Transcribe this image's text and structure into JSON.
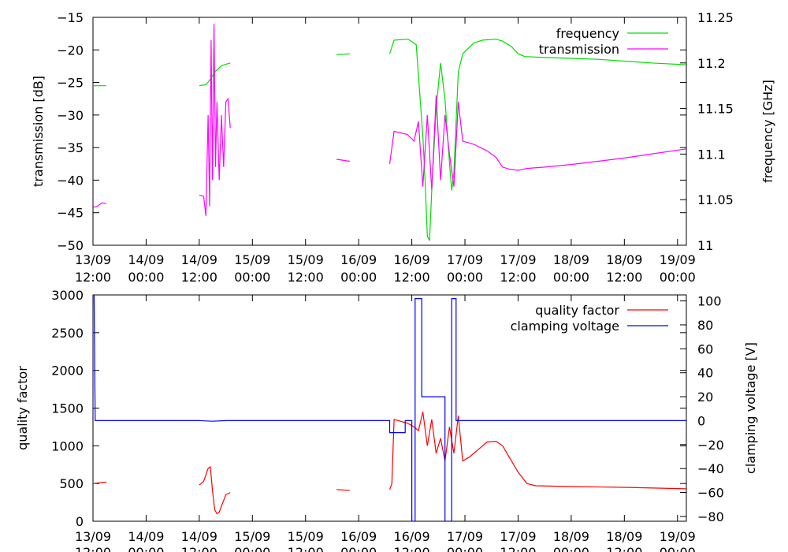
{
  "chart_data": [
    {
      "type": "line",
      "title": "",
      "ylabel": "transmission [dB]",
      "y2label": "frequency [GHz]",
      "xlim": [
        "2013-09-13T12:00",
        "2013-09-19T02:00"
      ],
      "ylim": [
        -50,
        -15
      ],
      "y2lim": [
        11.0,
        11.25
      ],
      "x_ticks": [
        {
          "at": "2013-09-13T12:00",
          "date": "13/09",
          "time": "12:00"
        },
        {
          "at": "2013-09-14T00:00",
          "date": "14/09",
          "time": "00:00"
        },
        {
          "at": "2013-09-14T12:00",
          "date": "14/09",
          "time": "12:00"
        },
        {
          "at": "2013-09-15T00:00",
          "date": "15/09",
          "time": "00:00"
        },
        {
          "at": "2013-09-15T12:00",
          "date": "15/09",
          "time": "12:00"
        },
        {
          "at": "2013-09-16T00:00",
          "date": "16/09",
          "time": "00:00"
        },
        {
          "at": "2013-09-16T12:00",
          "date": "16/09",
          "time": "12:00"
        },
        {
          "at": "2013-09-17T00:00",
          "date": "17/09",
          "time": "00:00"
        },
        {
          "at": "2013-09-17T12:00",
          "date": "17/09",
          "time": "12:00"
        },
        {
          "at": "2013-09-18T00:00",
          "date": "18/09",
          "time": "00:00"
        },
        {
          "at": "2013-09-18T12:00",
          "date": "18/09",
          "time": "12:00"
        },
        {
          "at": "2013-09-19T00:00",
          "date": "19/09",
          "time": "00:00"
        }
      ],
      "y_ticks": [
        -15,
        -20,
        -25,
        -30,
        -35,
        -40,
        -45,
        -50
      ],
      "y2_ticks": [
        11.25,
        11.2,
        11.15,
        11.1,
        11.05,
        11
      ],
      "legend": "top-right",
      "series": [
        {
          "name": "frequency",
          "axis": "y2",
          "color": "#00dd00",
          "segments": [
            [
              [
                "2013-09-13T12:00",
                11.175
              ],
              [
                "2013-09-13T15:00",
                11.175
              ]
            ],
            [
              [
                "2013-09-14T12:00",
                11.175
              ],
              [
                "2013-09-14T13:30",
                11.176
              ],
              [
                "2013-09-14T14:30",
                11.182
              ],
              [
                "2013-09-14T15:30",
                11.19
              ],
              [
                "2013-09-14T17:00",
                11.197
              ],
              [
                "2013-09-14T19:00",
                11.2
              ]
            ],
            [
              [
                "2013-09-15T19:00",
                11.209
              ],
              [
                "2013-09-15T22:00",
                11.21
              ]
            ],
            [
              [
                "2013-09-16T07:00",
                11.21
              ],
              [
                "2013-09-16T08:00",
                11.225
              ],
              [
                "2013-09-16T11:00",
                11.226
              ],
              [
                "2013-09-16T11:30",
                11.225
              ],
              [
                "2013-09-16T13:00",
                11.22
              ],
              [
                "2013-09-16T14:30",
                11.12
              ],
              [
                "2013-09-16T15:00",
                11.07
              ],
              [
                "2013-09-16T15:30",
                11.01
              ],
              [
                "2013-09-16T16:00",
                11.005
              ],
              [
                "2013-09-16T16:30",
                11.06
              ],
              [
                "2013-09-16T17:30",
                11.15
              ],
              [
                "2013-09-16T18:30",
                11.2
              ],
              [
                "2013-09-16T19:30",
                11.16
              ],
              [
                "2013-09-16T20:30",
                11.09
              ],
              [
                "2013-09-16T21:00",
                11.06
              ],
              [
                "2013-09-16T21:30",
                11.08
              ],
              [
                "2013-09-16T22:30",
                11.19
              ],
              [
                "2013-09-16T23:30",
                11.21
              ],
              [
                "2013-09-17T02:00",
                11.222
              ],
              [
                "2013-09-17T04:00",
                11.225
              ],
              [
                "2013-09-17T07:00",
                11.226
              ],
              [
                "2013-09-17T08:30",
                11.224
              ],
              [
                "2013-09-17T10:30",
                11.218
              ],
              [
                "2013-09-17T12:00",
                11.21
              ],
              [
                "2013-09-17T13:30",
                11.207
              ],
              [
                "2013-09-17T18:00",
                11.206
              ],
              [
                "2013-09-18T00:00",
                11.205
              ],
              [
                "2013-09-18T06:00",
                11.204
              ],
              [
                "2013-09-18T12:00",
                11.202
              ],
              [
                "2013-09-18T18:00",
                11.2
              ],
              [
                "2013-09-19T02:00",
                11.198
              ]
            ]
          ]
        },
        {
          "name": "transmission",
          "axis": "y",
          "color": "#ff00ff",
          "segments": [
            [
              [
                "2013-09-13T12:00",
                -44.2
              ],
              [
                "2013-09-13T13:00",
                -44.0
              ],
              [
                "2013-09-13T14:00",
                -43.5
              ],
              [
                "2013-09-13T15:00",
                -43.6
              ]
            ],
            [
              [
                "2013-09-14T12:00",
                -42.3
              ],
              [
                "2013-09-14T13:00",
                -42.5
              ],
              [
                "2013-09-14T13:30",
                -45.5
              ],
              [
                "2013-09-14T14:00",
                -30
              ],
              [
                "2013-09-14T14:20",
                -44
              ],
              [
                "2013-09-14T14:40",
                -18.5
              ],
              [
                "2013-09-14T15:00",
                -40
              ],
              [
                "2013-09-14T15:20",
                -16
              ],
              [
                "2013-09-14T15:40",
                -38
              ],
              [
                "2013-09-14T16:00",
                -28
              ],
              [
                "2013-09-14T16:30",
                -40
              ],
              [
                "2013-09-14T17:00",
                -30
              ],
              [
                "2013-09-14T17:30",
                -38
              ],
              [
                "2013-09-14T18:00",
                -28
              ],
              [
                "2013-09-14T18:30",
                -27.5
              ],
              [
                "2013-09-14T19:00",
                -32
              ]
            ],
            [
              [
                "2013-09-15T19:00",
                -36.8
              ],
              [
                "2013-09-15T22:00",
                -37.1
              ]
            ],
            [
              [
                "2013-09-16T07:00",
                -37.5
              ],
              [
                "2013-09-16T08:00",
                -32.5
              ],
              [
                "2013-09-16T11:00",
                -33
              ],
              [
                "2013-09-16T12:30",
                -34
              ],
              [
                "2013-09-16T13:30",
                -31
              ],
              [
                "2013-09-16T14:30",
                -41
              ],
              [
                "2013-09-16T15:30",
                -30
              ],
              [
                "2013-09-16T16:30",
                -41.5
              ],
              [
                "2013-09-16T17:30",
                -27
              ],
              [
                "2013-09-16T18:30",
                -40
              ],
              [
                "2013-09-16T19:30",
                -30
              ],
              [
                "2013-09-16T20:30",
                -36
              ],
              [
                "2013-09-16T21:30",
                -41
              ],
              [
                "2013-09-16T22:30",
                -28
              ],
              [
                "2013-09-16T23:30",
                -34
              ],
              [
                "2013-09-17T02:00",
                -34.5
              ],
              [
                "2013-09-17T05:00",
                -35.5
              ],
              [
                "2013-09-17T07:00",
                -36.5
              ],
              [
                "2013-09-17T08:30",
                -38
              ],
              [
                "2013-09-17T10:00",
                -38.3
              ],
              [
                "2013-09-17T12:00",
                -38.5
              ],
              [
                "2013-09-17T14:00",
                -38.2
              ],
              [
                "2013-09-17T18:00",
                -38
              ],
              [
                "2013-09-18T00:00",
                -37.6
              ],
              [
                "2013-09-18T06:00",
                -37.1
              ],
              [
                "2013-09-18T12:00",
                -36.6
              ],
              [
                "2013-09-18T18:00",
                -36
              ],
              [
                "2013-09-19T02:00",
                -35.2
              ]
            ]
          ]
        }
      ]
    },
    {
      "type": "line",
      "title": "",
      "ylabel": "quality factor",
      "y2label": "clamping voltage [V]",
      "xlim": [
        "2013-09-13T12:00",
        "2013-09-19T02:00"
      ],
      "ylim": [
        0,
        3000
      ],
      "y2lim": [
        -84,
        105
      ],
      "x_ticks": [
        {
          "at": "2013-09-13T12:00",
          "date": "13/09",
          "time": "12:00"
        },
        {
          "at": "2013-09-14T00:00",
          "date": "14/09",
          "time": "00:00"
        },
        {
          "at": "2013-09-14T12:00",
          "date": "14/09",
          "time": "12:00"
        },
        {
          "at": "2013-09-15T00:00",
          "date": "15/09",
          "time": "00:00"
        },
        {
          "at": "2013-09-15T12:00",
          "date": "15/09",
          "time": "12:00"
        },
        {
          "at": "2013-09-16T00:00",
          "date": "16/09",
          "time": "00:00"
        },
        {
          "at": "2013-09-16T12:00",
          "date": "16/09",
          "time": "12:00"
        },
        {
          "at": "2013-09-17T00:00",
          "date": "17/09",
          "time": "00:00"
        },
        {
          "at": "2013-09-17T12:00",
          "date": "17/09",
          "time": "12:00"
        },
        {
          "at": "2013-09-18T00:00",
          "date": "18/09",
          "time": "00:00"
        },
        {
          "at": "2013-09-18T12:00",
          "date": "18/09",
          "time": "12:00"
        },
        {
          "at": "2013-09-19T00:00",
          "date": "19/09",
          "time": "00:00"
        }
      ],
      "y_ticks": [
        3000,
        2500,
        2000,
        1500,
        1000,
        500,
        0
      ],
      "y2_ticks": [
        100,
        80,
        60,
        40,
        20,
        0,
        -20,
        -40,
        -60,
        -80
      ],
      "legend": "top-right",
      "series": [
        {
          "name": "quality factor",
          "axis": "y",
          "color": "#ff0000",
          "segments": [
            [
              [
                "2013-09-13T12:00",
                500
              ],
              [
                "2013-09-13T13:30",
                510
              ],
              [
                "2013-09-13T15:00",
                520
              ]
            ],
            [
              [
                "2013-09-14T12:00",
                480
              ],
              [
                "2013-09-14T13:00",
                530
              ],
              [
                "2013-09-14T14:00",
                700
              ],
              [
                "2013-09-14T14:30",
                720
              ],
              [
                "2013-09-14T15:00",
                400
              ],
              [
                "2013-09-14T15:30",
                150
              ],
              [
                "2013-09-14T16:00",
                100
              ],
              [
                "2013-09-14T16:30",
                120
              ],
              [
                "2013-09-14T17:00",
                200
              ],
              [
                "2013-09-14T18:00",
                350
              ],
              [
                "2013-09-14T19:00",
                380
              ]
            ],
            [
              [
                "2013-09-15T19:00",
                420
              ],
              [
                "2013-09-15T22:00",
                410
              ]
            ],
            [
              [
                "2013-09-16T07:00",
                420
              ],
              [
                "2013-09-16T07:30",
                500
              ],
              [
                "2013-09-16T08:00",
                1350
              ],
              [
                "2013-09-16T11:00",
                1300
              ],
              [
                "2013-09-16T12:30",
                1250
              ],
              [
                "2013-09-16T13:30",
                1200
              ],
              [
                "2013-09-16T14:30",
                1450
              ],
              [
                "2013-09-16T15:30",
                1000
              ],
              [
                "2013-09-16T16:30",
                1350
              ],
              [
                "2013-09-16T17:30",
                900
              ],
              [
                "2013-09-16T18:30",
                1100
              ],
              [
                "2013-09-16T19:30",
                800
              ],
              [
                "2013-09-16T20:30",
                1250
              ],
              [
                "2013-09-16T21:30",
                900
              ],
              [
                "2013-09-16T22:30",
                1400
              ],
              [
                "2013-09-16T23:30",
                800
              ],
              [
                "2013-09-17T01:00",
                850
              ],
              [
                "2013-09-17T03:00",
                950
              ],
              [
                "2013-09-17T05:00",
                1050
              ],
              [
                "2013-09-17T07:00",
                1060
              ],
              [
                "2013-09-17T08:30",
                1000
              ],
              [
                "2013-09-17T10:00",
                850
              ],
              [
                "2013-09-17T12:00",
                650
              ],
              [
                "2013-09-17T14:00",
                500
              ],
              [
                "2013-09-17T16:00",
                470
              ],
              [
                "2013-09-18T00:00",
                460
              ],
              [
                "2013-09-18T12:00",
                450
              ],
              [
                "2013-09-19T02:00",
                430
              ]
            ]
          ]
        },
        {
          "name": "clamping voltage",
          "axis": "y2",
          "color": "#0000ff",
          "segments": [
            [
              [
                "2013-09-13T12:00",
                105
              ],
              [
                "2013-09-13T12:15",
                105
              ],
              [
                "2013-09-13T12:30",
                0
              ],
              [
                "2013-09-14T12:00",
                0
              ],
              [
                "2013-09-14T15:00",
                -0.5
              ],
              [
                "2013-09-14T18:00",
                0
              ],
              [
                "2013-09-16T07:00",
                0
              ],
              [
                "2013-09-16T07:00",
                -10
              ],
              [
                "2013-09-16T10:30",
                -10
              ],
              [
                "2013-09-16T10:30",
                0
              ],
              [
                "2013-09-16T12:00",
                0
              ],
              [
                "2013-09-16T12:00",
                -84
              ],
              [
                "2013-09-16T12:45",
                -84
              ],
              [
                "2013-09-16T12:45",
                102
              ],
              [
                "2013-09-16T14:15",
                102
              ],
              [
                "2013-09-16T14:15",
                20
              ],
              [
                "2013-09-16T19:30",
                20
              ],
              [
                "2013-09-16T19:30",
                -84
              ],
              [
                "2013-09-16T21:00",
                -84
              ],
              [
                "2013-09-16T21:00",
                102
              ],
              [
                "2013-09-16T22:00",
                102
              ],
              [
                "2013-09-16T22:00",
                0
              ],
              [
                "2013-09-19T02:00",
                0
              ]
            ]
          ]
        }
      ]
    }
  ]
}
